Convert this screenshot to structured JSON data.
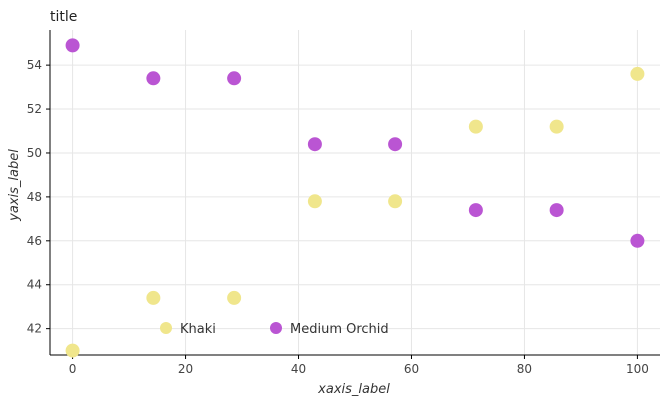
{
  "chart_data": {
    "type": "scatter",
    "title": "title",
    "xlabel": "xaxis_label",
    "ylabel": "yaxis_label",
    "xlim": [
      -4,
      104
    ],
    "ylim": [
      40.8,
      55.6
    ],
    "x_ticks": [
      0,
      20,
      40,
      60,
      80,
      100
    ],
    "y_ticks": [
      42,
      44,
      46,
      48,
      50,
      52,
      54
    ],
    "grid": true,
    "legend_position": "bottom-center",
    "series": [
      {
        "name": "Khaki",
        "color": "#f0e68c",
        "x": [
          0,
          14.3,
          28.6,
          42.9,
          57.1,
          71.4,
          85.7,
          100
        ],
        "y": [
          41.0,
          43.4,
          43.4,
          47.8,
          47.8,
          51.2,
          51.2,
          53.6
        ]
      },
      {
        "name": "Medium Orchid",
        "color": "#ba55d3",
        "x": [
          0,
          14.3,
          28.6,
          42.9,
          57.1,
          71.4,
          85.7,
          100
        ],
        "y": [
          54.9,
          53.4,
          53.4,
          50.4,
          50.4,
          47.4,
          47.4,
          46.0
        ]
      }
    ]
  }
}
